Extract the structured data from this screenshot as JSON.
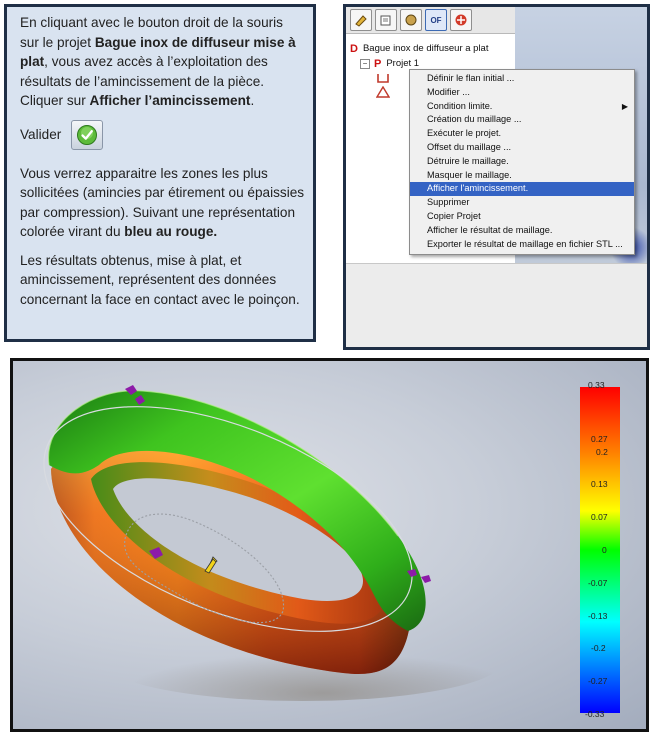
{
  "instructions": {
    "p1_pre": "En cliquant avec le bouton droit de la souris sur le projet ",
    "p1_bold1": "Bague inox de diffuseur  mise à plat",
    "p1_mid": ", vous avez accès à l’exploitation des résultats de l’amincissement de la pièce. Cliquer sur ",
    "p1_bold2": "Afficher l’amincissement",
    "p1_end": ".",
    "valider_label": "Valider",
    "p2_pre": "Vous verrez apparaitre les zones les plus sollicitées (amincies par étirement ou épaissies par compression). Suivant une représentation colorée virant du ",
    "p2_bold": "bleu au rouge.",
    "p3": "Les résultats obtenus, mise à plat, et amincissement, représentent des données concernant la face en contact avec le poinçon."
  },
  "software": {
    "toolbar_buttons": [
      "tb-tool1",
      "tb-tool2",
      "tb-tool3",
      "OF",
      "tb-tool5"
    ],
    "tree": {
      "root_letter": "D",
      "root_label": "Bague inox de diffuseur a plat",
      "project_letter": "P",
      "project_label": "Projet 1"
    },
    "context_menu": [
      {
        "label": "Définir le flan initial ...",
        "selected": false,
        "submenu": false
      },
      {
        "label": "Modifier ...",
        "selected": false,
        "submenu": false
      },
      {
        "label": "Condition limite.",
        "selected": false,
        "submenu": true
      },
      {
        "label": "Création du maillage ...",
        "selected": false,
        "submenu": false
      },
      {
        "label": "Exécuter le projet.",
        "selected": false,
        "submenu": false
      },
      {
        "label": "Offset du maillage ...",
        "selected": false,
        "submenu": false
      },
      {
        "label": "Détruire le maillage.",
        "selected": false,
        "submenu": false
      },
      {
        "label": "Masquer le maillage.",
        "selected": false,
        "submenu": false
      },
      {
        "label": "Afficher l'amincissement.",
        "selected": true,
        "submenu": false
      },
      {
        "label": "Supprimer",
        "selected": false,
        "submenu": false
      },
      {
        "label": "Copier Projet",
        "selected": false,
        "submenu": false
      },
      {
        "label": "Afficher le résultat de maillage.",
        "selected": false,
        "submenu": false
      },
      {
        "label": "Exporter le résultat de maillage en fichier STL ...",
        "selected": false,
        "submenu": false
      }
    ]
  },
  "viewport": {
    "color_scale_labels": [
      "0.33",
      "0.27",
      "0.2",
      "0.13",
      "0.07",
      "0",
      "-0.07",
      "-0.13",
      "-0.2",
      "-0.27",
      "-0.33"
    ],
    "scale_colors": [
      "#ff0000",
      "#ff8000",
      "#ffff00",
      "#00ff00",
      "#00ffff",
      "#0000ff"
    ]
  }
}
